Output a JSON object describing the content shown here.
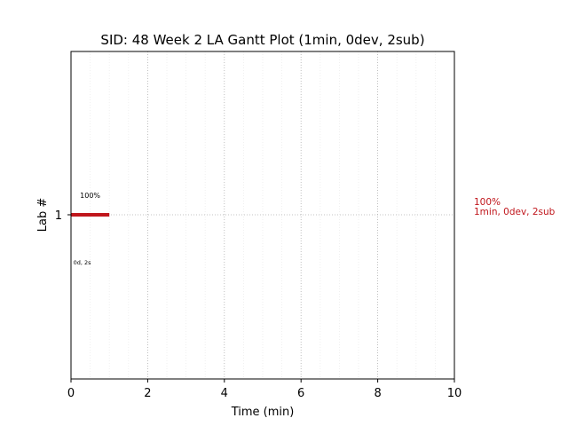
{
  "chart_data": {
    "type": "gantt",
    "title": "SID: 48 Week 2 LA Gantt Plot (1min, 0dev, 2sub)",
    "xlabel": "Time (min)",
    "ylabel": "Lab #",
    "xlim": [
      0,
      10
    ],
    "x_ticks": [
      0,
      2,
      4,
      6,
      8,
      10
    ],
    "x_minor_step": 0.5,
    "y_ticks": [
      1
    ],
    "grid": true,
    "bars": [
      {
        "lab": 1,
        "start": 0,
        "end": 1,
        "color": "#c0161c",
        "percent_label": "100%",
        "detail_label": "0d, 2s"
      }
    ],
    "side_annotation": {
      "line1": "100%",
      "line2": "1min, 0dev, 2sub",
      "color": "#c0161c"
    }
  }
}
